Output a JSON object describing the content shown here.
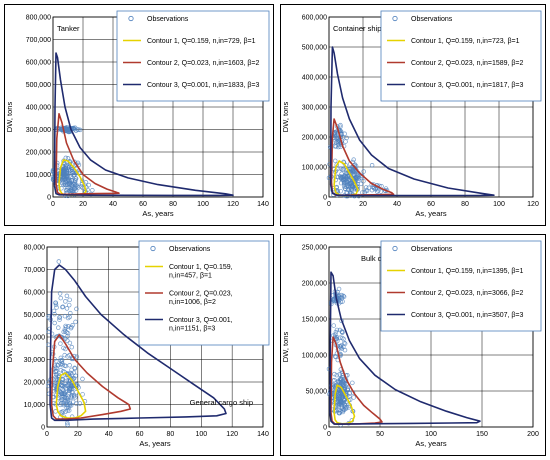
{
  "colors": {
    "observations": "#4f81bd",
    "contour1": "#e6d200",
    "contour2": "#b03a2e",
    "contour3": "#1f2a6e",
    "grid": "#000000"
  },
  "chart_data": [
    {
      "type": "scatter",
      "annotation": "Tanker",
      "xlabel": "As, years",
      "ylabel": "DW, tons",
      "xlim": [
        0,
        140
      ],
      "ylim": [
        0,
        800000
      ],
      "xticks": [
        0,
        20,
        40,
        60,
        80,
        100,
        120,
        140
      ],
      "xtick_labels": [
        "0",
        "20",
        "40",
        "60",
        "80",
        "100",
        "120",
        "140"
      ],
      "yticks": [
        0,
        100000,
        200000,
        300000,
        400000,
        500000,
        600000,
        700000,
        800000
      ],
      "ytick_labels": [
        "0",
        "100,000",
        "200,000",
        "300,000",
        "400,000",
        "500,000",
        "600,000",
        "700,000",
        "800,000"
      ],
      "grid": true,
      "legend_position": "top-right",
      "legend": [
        "Observations",
        "Contour 1, Q=0.159, n,in=729, β=1",
        "Contour 2, Q=0.023, n,in=1603, β=2",
        "Contour 3, Q=0.001, n,in=1833, β=3"
      ],
      "observations": {
        "x_range": [
          0,
          35
        ],
        "y_range": [
          5000,
          330000
        ],
        "clusters": [
          [
            8,
            100000,
            8,
            60000,
            0.6
          ],
          [
            10,
            300000,
            7,
            8000,
            0.25
          ],
          [
            15,
            40000,
            10,
            30000,
            0.15
          ]
        ]
      },
      "contours": [
        {
          "series": "contour1",
          "x": [
            4,
            5,
            7,
            10,
            14,
            18,
            21,
            22,
            20,
            16,
            12,
            8,
            6,
            4.5,
            4
          ],
          "y": [
            60000,
            130000,
            165000,
            160000,
            130000,
            90000,
            50000,
            25000,
            12000,
            8000,
            8000,
            10000,
            15000,
            30000,
            60000
          ]
        },
        {
          "series": "contour2",
          "x": [
            2,
            2.5,
            4,
            6,
            9,
            14,
            20,
            28,
            36,
            42,
            44,
            40,
            30,
            20,
            10,
            5,
            3,
            2
          ],
          "y": [
            60000,
            260000,
            370000,
            330000,
            240000,
            160000,
            100000,
            60000,
            35000,
            22000,
            17000,
            16000,
            15000,
            14000,
            12000,
            12000,
            20000,
            60000
          ]
        },
        {
          "series": "contour3",
          "x": [
            1,
            1.3,
            2,
            3,
            5,
            8,
            12,
            18,
            25,
            35,
            50,
            70,
            95,
            115,
            120,
            110,
            80,
            50,
            25,
            10,
            4,
            2,
            1
          ],
          "y": [
            50000,
            400000,
            640000,
            620000,
            520000,
            400000,
            300000,
            220000,
            165000,
            120000,
            85000,
            55000,
            30000,
            14000,
            8000,
            7000,
            7000,
            7500,
            8000,
            9000,
            10000,
            15000,
            50000
          ]
        }
      ]
    },
    {
      "type": "scatter",
      "annotation": "Container ship",
      "xlabel": "As, years",
      "ylabel": "DW, tons",
      "xlim": [
        0,
        120
      ],
      "ylim": [
        0,
        600000
      ],
      "xticks": [
        0,
        20,
        40,
        60,
        80,
        100,
        120
      ],
      "xtick_labels": [
        "0",
        "20",
        "40",
        "60",
        "80",
        "100",
        "120"
      ],
      "yticks": [
        0,
        100000,
        200000,
        300000,
        400000,
        500000,
        600000
      ],
      "ytick_labels": [
        "0",
        "100,000",
        "200,000",
        "300,000",
        "400,000",
        "500,000",
        "600,000"
      ],
      "grid": true,
      "legend_position": "top-right",
      "legend": [
        "Observations",
        "Contour 1, Q=0.159, n,in=723, β=1",
        "Contour 2, Q=0.023, n,in=1589, β=2",
        "Contour 3, Q=0.001, n,in=1817, β=3"
      ],
      "observations": {
        "x_range": [
          0,
          40
        ],
        "y_range": [
          3000,
          270000
        ],
        "clusters": [
          [
            12,
            60000,
            8,
            50000,
            0.7
          ],
          [
            5,
            200000,
            4,
            40000,
            0.2
          ],
          [
            25,
            25000,
            8,
            15000,
            0.1
          ]
        ]
      },
      "contours": [
        {
          "series": "contour1",
          "x": [
            3,
            4,
            6,
            9,
            12,
            15,
            17,
            16,
            13,
            9,
            6,
            4,
            3
          ],
          "y": [
            40000,
            100000,
            120000,
            110000,
            80000,
            50000,
            25000,
            10000,
            6000,
            5000,
            7000,
            15000,
            40000
          ]
        },
        {
          "series": "contour2",
          "x": [
            1.5,
            2,
            3,
            5,
            8,
            12,
            18,
            25,
            32,
            37,
            38,
            32,
            20,
            10,
            4,
            2,
            1.5
          ],
          "y": [
            50000,
            200000,
            260000,
            230000,
            170000,
            120000,
            80000,
            45000,
            25000,
            14000,
            9000,
            8000,
            7000,
            6000,
            6000,
            15000,
            50000
          ]
        },
        {
          "series": "contour3",
          "x": [
            1,
            1.2,
            2,
            3,
            5,
            8,
            12,
            18,
            25,
            35,
            50,
            70,
            90,
            97,
            88,
            60,
            35,
            15,
            5,
            2,
            1
          ],
          "y": [
            40000,
            300000,
            500000,
            480000,
            410000,
            330000,
            260000,
            190000,
            140000,
            95000,
            60000,
            30000,
            12000,
            6000,
            5000,
            5000,
            5000,
            5000,
            6000,
            12000,
            40000
          ]
        }
      ]
    },
    {
      "type": "scatter",
      "annotation": "General cargo ship",
      "xlabel": "As, years",
      "ylabel": "DW, tons",
      "xlim": [
        0,
        140
      ],
      "ylim": [
        0,
        80000
      ],
      "xticks": [
        0,
        20,
        40,
        60,
        80,
        100,
        120,
        140
      ],
      "xtick_labels": [
        "0",
        "20",
        "40",
        "60",
        "80",
        "100",
        "120",
        "140"
      ],
      "yticks": [
        0,
        10000,
        20000,
        30000,
        40000,
        50000,
        60000,
        70000,
        80000
      ],
      "ytick_labels": [
        "0",
        "10,000",
        "20,000",
        "30,000",
        "40,000",
        "50,000",
        "60,000",
        "70,000",
        "80,000"
      ],
      "grid": true,
      "legend_position": "top-right",
      "legend": [
        "Observations",
        "Contour 1, Q=0.159, n,in=457, β=1",
        "Contour 2, Q=0.023, n,in=1006, β=2",
        "Contour 3, Q=0.001, n,in=1151, β=3"
      ],
      "observations": {
        "x_range": [
          1,
          45
        ],
        "y_range": [
          1000,
          74000
        ],
        "clusters": [
          [
            12,
            18000,
            9,
            12000,
            0.75
          ],
          [
            10,
            45000,
            8,
            15000,
            0.25
          ]
        ]
      },
      "contours": [
        {
          "series": "contour1",
          "x": [
            6,
            7,
            9,
            12,
            16,
            20,
            24,
            25,
            22,
            18,
            13,
            9,
            7,
            6
          ],
          "y": [
            10000,
            18000,
            23000,
            24000,
            21000,
            16000,
            11000,
            7000,
            5000,
            4000,
            4000,
            5000,
            7000,
            10000
          ]
        },
        {
          "series": "contour2",
          "x": [
            3,
            3.5,
            5,
            8,
            12,
            18,
            26,
            36,
            46,
            53,
            54,
            48,
            36,
            22,
            12,
            6,
            4,
            3
          ],
          "y": [
            10000,
            25000,
            38000,
            41000,
            37000,
            30000,
            24000,
            18000,
            13000,
            10000,
            8000,
            7000,
            5500,
            4000,
            3500,
            3500,
            5000,
            10000
          ]
        },
        {
          "series": "contour3",
          "x": [
            2,
            2.2,
            3,
            5,
            8,
            12,
            18,
            25,
            35,
            50,
            65,
            80,
            95,
            108,
            115,
            116,
            110,
            90,
            60,
            30,
            12,
            5,
            3,
            2
          ],
          "y": [
            10000,
            30000,
            60000,
            70000,
            72000,
            70000,
            65000,
            58000,
            50000,
            41000,
            33000,
            26000,
            19000,
            13000,
            8000,
            6000,
            5000,
            4500,
            4000,
            3500,
            3000,
            3000,
            4000,
            10000
          ]
        }
      ]
    },
    {
      "type": "scatter",
      "annotation": "Bulk carrier",
      "xlabel": "As, years",
      "ylabel": "DW, tons",
      "xlim": [
        0,
        200
      ],
      "ylim": [
        0,
        250000
      ],
      "xticks": [
        0,
        50,
        100,
        150,
        200
      ],
      "xtick_labels": [
        "0",
        "50",
        "100",
        "150",
        "200"
      ],
      "yticks": [
        0,
        50000,
        100000,
        150000,
        200000,
        250000
      ],
      "ytick_labels": [
        "0",
        "50,000",
        "100,000",
        "150,000",
        "200,000",
        "250,000"
      ],
      "grid": true,
      "legend_position": "top-right",
      "legend": [
        "Observations",
        "Contour 1, Q=0.159, n,in=1395, β=1",
        "Contour 2, Q=0.023, n,in=3066, β=2",
        "Contour 3, Q=0.001, n,in=3507, β=3"
      ],
      "observations": {
        "x_range": [
          0,
          55
        ],
        "y_range": [
          3000,
          215000
        ],
        "clusters": [
          [
            12,
            45000,
            9,
            30000,
            0.7
          ],
          [
            8,
            180000,
            6,
            8000,
            0.15
          ],
          [
            10,
            120000,
            8,
            25000,
            0.15
          ]
        ]
      },
      "contours": [
        {
          "series": "contour1",
          "x": [
            5,
            6,
            8,
            12,
            17,
            22,
            25,
            23,
            18,
            12,
            8,
            6,
            5
          ],
          "y": [
            20000,
            45000,
            58000,
            55000,
            42000,
            28000,
            15000,
            8000,
            5000,
            4500,
            6000,
            10000,
            20000
          ]
        },
        {
          "series": "contour2",
          "x": [
            2,
            2.5,
            4,
            7,
            11,
            17,
            25,
            34,
            43,
            50,
            52,
            45,
            30,
            15,
            6,
            3,
            2
          ],
          "y": [
            20000,
            90000,
            125000,
            115000,
            90000,
            66000,
            46000,
            30000,
            19000,
            11000,
            7000,
            5500,
            4500,
            4000,
            4000,
            8000,
            20000
          ]
        },
        {
          "series": "contour3",
          "x": [
            1,
            1.3,
            2,
            4,
            7,
            12,
            20,
            30,
            45,
            65,
            90,
            115,
            135,
            148,
            145,
            120,
            80,
            40,
            15,
            5,
            2,
            1
          ],
          "y": [
            20000,
            120000,
            215000,
            210000,
            180000,
            150000,
            120000,
            95000,
            72000,
            52000,
            35000,
            22000,
            13000,
            8000,
            6000,
            5500,
            5000,
            4500,
            4000,
            4000,
            8000,
            20000
          ]
        }
      ]
    }
  ]
}
